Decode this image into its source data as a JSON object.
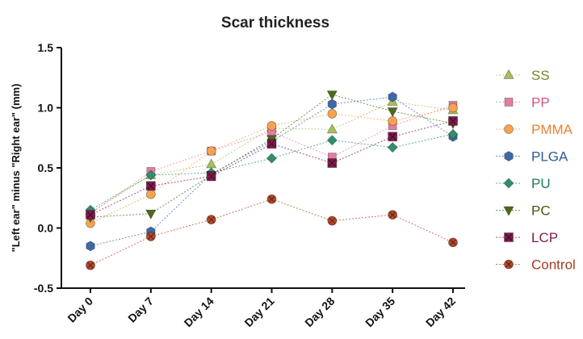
{
  "chart_data": {
    "type": "line",
    "title": "Scar  thickness",
    "xlabel": "",
    "ylabel": "\"Left ear\" minus \"Right ear\" (mm)",
    "categories": [
      "Day 0",
      "Day 7",
      "Day 14",
      "Day 21",
      "Day 28",
      "Day 35",
      "Day 42"
    ],
    "ylim": [
      -0.5,
      1.5
    ],
    "yticks": [
      "-0.5",
      "0.0",
      "0.5",
      "1.0",
      "1.5"
    ],
    "legend_position": "right",
    "grid": false,
    "series": [
      {
        "name": "SS",
        "marker": "triangle-up",
        "color": "#a8bf5a",
        "text_color": "#6f8a2a",
        "values": [
          0.13,
          0.44,
          0.53,
          0.83,
          0.82,
          1.05,
          0.98
        ]
      },
      {
        "name": "PP",
        "marker": "square",
        "color": "#e07fa2",
        "text_color": "#d4557f",
        "values": [
          0.12,
          0.47,
          0.64,
          0.8,
          0.59,
          0.85,
          1.02
        ]
      },
      {
        "name": "PMMA",
        "marker": "circle",
        "color": "#f7a24f",
        "text_color": "#e8832e",
        "values": [
          0.04,
          0.28,
          0.64,
          0.85,
          0.95,
          0.89,
          1.0
        ]
      },
      {
        "name": "PLGA",
        "marker": "hexagon",
        "color": "#3f69a8",
        "text_color": "#2f5a94",
        "values": [
          -0.15,
          -0.03,
          0.45,
          0.72,
          1.03,
          1.09,
          0.76
        ]
      },
      {
        "name": "PU",
        "marker": "diamond",
        "color": "#2f8f6e",
        "text_color": "#1f7a58",
        "values": [
          0.15,
          0.44,
          0.46,
          0.58,
          0.73,
          0.67,
          0.78
        ]
      },
      {
        "name": "PC",
        "marker": "triangle-down",
        "color": "#4f6a1a",
        "text_color": "#3f5a12",
        "values": [
          0.09,
          0.12,
          0.44,
          0.74,
          1.11,
          0.97,
          0.87
        ]
      },
      {
        "name": "LCP",
        "marker": "xsquare",
        "color": "#7f1a4c",
        "text_color": "#7f1a4c",
        "values": [
          0.11,
          0.35,
          0.43,
          0.7,
          0.54,
          0.76,
          0.89
        ]
      },
      {
        "name": "Control",
        "marker": "xcircle",
        "color": "#b5472a",
        "text_color": "#a33b20",
        "values": [
          -0.31,
          -0.07,
          0.07,
          0.24,
          0.06,
          0.11,
          -0.12
        ]
      }
    ]
  }
}
